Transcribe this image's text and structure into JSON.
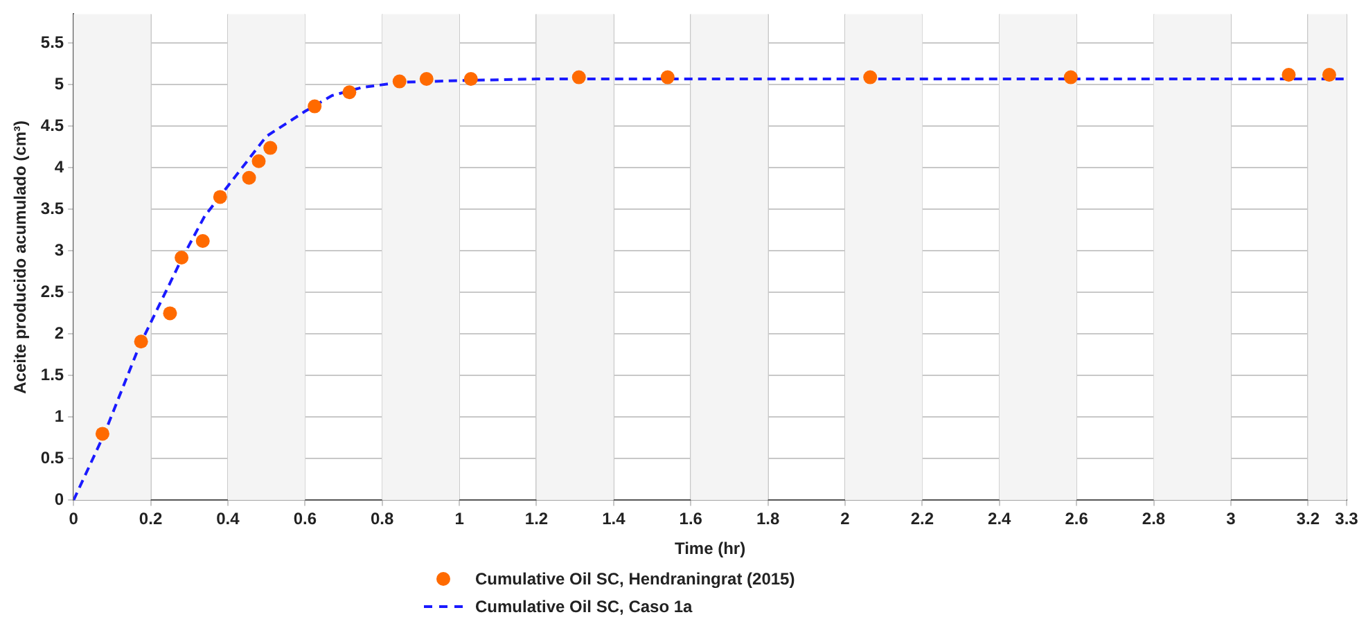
{
  "chart_data": {
    "type": "scatter",
    "xlabel": "Time (hr)",
    "ylabel": "Aceite producido acumulado (cm³)",
    "xlim": [
      0,
      3.3
    ],
    "ylim": [
      0,
      5.85
    ],
    "xticks": [
      0,
      0.2,
      0.4,
      0.6,
      0.8,
      1,
      1.2,
      1.4,
      1.6,
      1.8,
      2,
      2.2,
      2.4,
      2.6,
      2.8,
      3,
      3.2,
      3.3
    ],
    "yticks": [
      0,
      0.5,
      1,
      1.5,
      2,
      2.5,
      3,
      3.5,
      4,
      4.5,
      5,
      5.5
    ],
    "grid": true,
    "legend": "bottom",
    "series": [
      {
        "name": "Cumulative Oil SC, Hendraningrat (2015)",
        "color": "#ff6a00",
        "marker": "circle",
        "x": [
          0.075,
          0.175,
          0.25,
          0.28,
          0.335,
          0.38,
          0.455,
          0.48,
          0.51,
          0.625,
          0.715,
          0.845,
          0.915,
          1.03,
          1.31,
          1.54,
          2.065,
          2.585,
          3.15,
          3.255
        ],
        "values": [
          0.8,
          1.91,
          2.25,
          2.92,
          3.12,
          3.65,
          3.88,
          4.08,
          4.24,
          4.74,
          4.91,
          5.04,
          5.07,
          5.07,
          5.09,
          5.09,
          5.09,
          5.09,
          5.12,
          5.12
        ]
      },
      {
        "name": "Cumulative Oil SC, Caso 1a",
        "type": "line",
        "color": "#1a1aff",
        "line_style": "dashed",
        "marker": "none",
        "x": [
          0,
          0.08,
          0.17,
          0.28,
          0.34,
          0.42,
          0.5,
          0.6,
          0.67,
          0.75,
          0.85,
          1.0,
          1.2,
          3.3
        ],
        "values": [
          0,
          0.8,
          1.85,
          2.9,
          3.42,
          3.9,
          4.38,
          4.68,
          4.87,
          4.97,
          5.03,
          5.05,
          5.07,
          5.07
        ]
      }
    ]
  }
}
